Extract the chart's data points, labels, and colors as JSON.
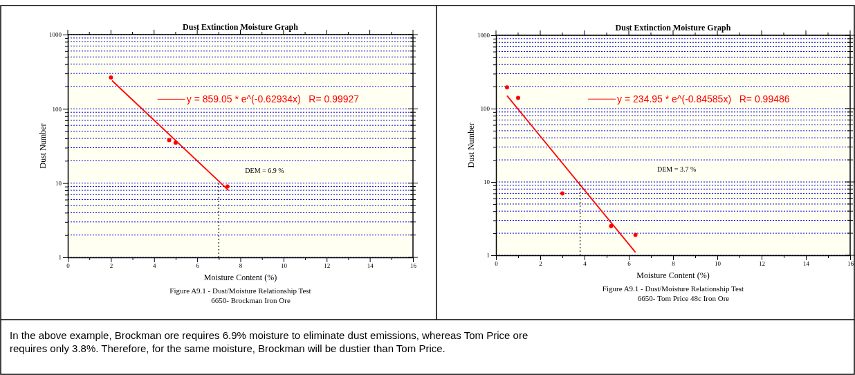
{
  "chart_data": [
    {
      "type": "scatter",
      "title": "Dust Extinction Moisture Graph",
      "xlabel": "Moisture Content (%)",
      "ylabel": "Dust Number",
      "log": "y",
      "xlim": [
        0,
        16
      ],
      "xticks": [
        0,
        {
          "value": 1,
          "label": null
        },
        2,
        {
          "value": 3,
          "label": null
        },
        4,
        {
          "value": 5,
          "label": null
        },
        6,
        {
          "value": 7,
          "label": null
        },
        8,
        {
          "value": 9,
          "label": null
        },
        10,
        {
          "value": 11,
          "label": null
        },
        12,
        {
          "value": 13,
          "label": null
        },
        14,
        {
          "value": 15,
          "label": null
        },
        16
      ],
      "ylim": [
        1,
        1000
      ],
      "yticks": [
        1,
        {
          "value": 2,
          "label": null
        },
        {
          "value": 3,
          "label": null
        },
        {
          "value": 4,
          "label": null
        },
        {
          "value": 5,
          "label": null
        },
        {
          "value": 6,
          "label": null
        },
        {
          "value": 7,
          "label": null
        },
        {
          "value": 8,
          "label": null
        },
        {
          "value": 9,
          "label": null
        },
        10,
        {
          "value": 20,
          "label": null
        },
        {
          "value": 30,
          "label": null
        },
        {
          "value": 40,
          "label": null
        },
        {
          "value": 50,
          "label": null
        },
        {
          "value": 60,
          "label": null
        },
        {
          "value": 70,
          "label": null
        },
        {
          "value": 80,
          "label": null
        },
        {
          "value": 90,
          "label": null
        },
        100,
        {
          "value": 200,
          "label": null
        },
        {
          "value": 300,
          "label": null
        },
        {
          "value": 400,
          "label": null
        },
        {
          "value": 500,
          "label": null
        },
        {
          "value": 600,
          "label": null
        },
        {
          "value": 700,
          "label": null
        },
        {
          "value": 800,
          "label": null
        },
        {
          "value": 900,
          "label": null
        },
        1000
      ],
      "grid": "y",
      "legend": "top",
      "series": [
        {
          "type": "scatter",
          "color": "#ff0000",
          "marker": "circle",
          "x": [
            2.0,
            4.7,
            5.0,
            7.4
          ],
          "values": [
            265,
            38,
            35,
            9
          ]
        },
        {
          "type": "line",
          "name": "y = 859.05 * e^(-0.62934x)   R= 0.99927",
          "color": "#ff0000",
          "line_style": "solid",
          "x": [
            2.05,
            7.45
          ],
          "values": [
            240,
            8
          ]
        },
        {
          "type": "line",
          "color": "#000000",
          "line_style": "dotted",
          "x": [
            7.0,
            7.0
          ],
          "values": [
            1,
            10
          ]
        }
      ],
      "annotations": [
        "DEM = 6.9 %",
        "Figure A9.1 - Dust/Moisture Relationship Test",
        "6650- Brockman Iron Ore"
      ]
    },
    {
      "type": "scatter",
      "title": "Dust Extinction Moisture Graph",
      "xlabel": "Moisture Content (%)",
      "ylabel": "Dust Number",
      "log": "y",
      "xlim": [
        0,
        16
      ],
      "xticks": [
        0,
        {
          "value": 1,
          "label": null
        },
        2,
        {
          "value": 3,
          "label": null
        },
        4,
        {
          "value": 5,
          "label": null
        },
        6,
        {
          "value": 7,
          "label": null
        },
        8,
        {
          "value": 9,
          "label": null
        },
        10,
        {
          "value": 11,
          "label": null
        },
        12,
        {
          "value": 13,
          "label": null
        },
        14,
        {
          "value": 15,
          "label": null
        },
        16
      ],
      "ylim": [
        1,
        1000
      ],
      "yticks": [
        1,
        {
          "value": 2,
          "label": null
        },
        {
          "value": 3,
          "label": null
        },
        {
          "value": 4,
          "label": null
        },
        {
          "value": 5,
          "label": null
        },
        {
          "value": 6,
          "label": null
        },
        {
          "value": 7,
          "label": null
        },
        {
          "value": 8,
          "label": null
        },
        {
          "value": 9,
          "label": null
        },
        10,
        {
          "value": 20,
          "label": null
        },
        {
          "value": 30,
          "label": null
        },
        {
          "value": 40,
          "label": null
        },
        {
          "value": 50,
          "label": null
        },
        {
          "value": 60,
          "label": null
        },
        {
          "value": 70,
          "label": null
        },
        {
          "value": 80,
          "label": null
        },
        {
          "value": 90,
          "label": null
        },
        100,
        {
          "value": 200,
          "label": null
        },
        {
          "value": 300,
          "label": null
        },
        {
          "value": 400,
          "label": null
        },
        {
          "value": 500,
          "label": null
        },
        {
          "value": 600,
          "label": null
        },
        {
          "value": 700,
          "label": null
        },
        {
          "value": 800,
          "label": null
        },
        {
          "value": 900,
          "label": null
        },
        1000
      ],
      "grid": "y",
      "legend": "top",
      "series": [
        {
          "type": "scatter",
          "color": "#ff0000",
          "marker": "circle",
          "x": [
            0.5,
            1.0,
            3.0,
            5.2,
            6.3
          ],
          "values": [
            195,
            140,
            7,
            2.5,
            1.9
          ]
        },
        {
          "type": "line",
          "name": "y = 234.95 * e^(-0.84585x)   R= 0.99486",
          "color": "#ff0000",
          "line_style": "solid",
          "x": [
            0.5,
            6.3
          ],
          "values": [
            150,
            1.1
          ]
        },
        {
          "type": "line",
          "color": "#000000",
          "line_style": "dotted",
          "x": [
            3.8,
            3.8
          ],
          "values": [
            1,
            10
          ]
        }
      ],
      "annotations": [
        "DEM = 3.7 %",
        "Figure A9.1 - Dust/Moisture Relationship Test",
        "6650- Tom Price 48c Iron Ore"
      ]
    },
    {
      "type": "other",
      "annotations": [
        "In the above example, Brockman ore requires 6.9% moisture to eliminate dust emissions, whereas Tom Price ore",
        "requires only 3.8%.  Therefore, for the same moisture, Brockman will be dustier than Tom Price."
      ]
    }
  ]
}
